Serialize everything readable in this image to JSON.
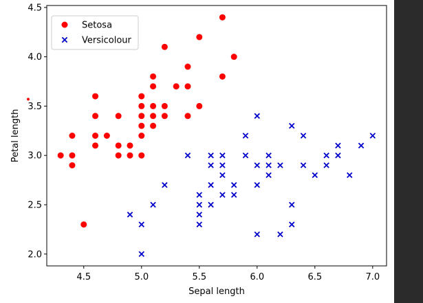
{
  "chart_data": {
    "type": "scatter",
    "title": "",
    "xlabel": "Sepal length",
    "ylabel": "Petal length",
    "xlim": [
      4.18,
      7.12
    ],
    "ylim": [
      1.88,
      4.52
    ],
    "xticks": [
      4.5,
      5.0,
      5.5,
      6.0,
      6.5,
      7.0
    ],
    "yticks": [
      2.0,
      2.5,
      3.0,
      3.5,
      4.0,
      4.5
    ],
    "xtick_labels": [
      "4.5",
      "5.0",
      "5.5",
      "6.0",
      "6.5",
      "7.0"
    ],
    "ytick_labels": [
      "2.0",
      "2.5",
      "3.0",
      "3.5",
      "4.0",
      "4.5"
    ],
    "grid": false,
    "legend_position": "top-left",
    "series": [
      {
        "name": "Setosa",
        "marker": "circle",
        "color": "#ff0000",
        "points": [
          [
            4.3,
            3.0
          ],
          [
            4.4,
            3.2
          ],
          [
            4.4,
            3.0
          ],
          [
            4.4,
            2.9
          ],
          [
            4.5,
            2.3
          ],
          [
            4.6,
            3.6
          ],
          [
            4.6,
            3.4
          ],
          [
            4.6,
            3.2
          ],
          [
            4.6,
            3.1
          ],
          [
            4.7,
            3.2
          ],
          [
            4.8,
            3.4
          ],
          [
            4.8,
            3.1
          ],
          [
            4.8,
            3.0
          ],
          [
            4.9,
            3.1
          ],
          [
            4.9,
            3.0
          ],
          [
            5.0,
            3.6
          ],
          [
            5.0,
            3.5
          ],
          [
            5.0,
            3.4
          ],
          [
            5.0,
            3.3
          ],
          [
            5.0,
            3.2
          ],
          [
            5.0,
            3.0
          ],
          [
            5.1,
            3.8
          ],
          [
            5.1,
            3.7
          ],
          [
            5.1,
            3.5
          ],
          [
            5.1,
            3.4
          ],
          [
            5.1,
            3.3
          ],
          [
            5.2,
            4.1
          ],
          [
            5.2,
            3.5
          ],
          [
            5.2,
            3.4
          ],
          [
            5.3,
            3.7
          ],
          [
            5.4,
            3.9
          ],
          [
            5.4,
            3.7
          ],
          [
            5.4,
            3.4
          ],
          [
            5.5,
            4.2
          ],
          [
            5.5,
            3.5
          ],
          [
            5.7,
            4.4
          ],
          [
            5.7,
            3.8
          ],
          [
            5.8,
            4.0
          ]
        ]
      },
      {
        "name": "Versicolour",
        "marker": "x",
        "color": "#0000cc",
        "points": [
          [
            4.9,
            2.4
          ],
          [
            5.0,
            2.3
          ],
          [
            5.0,
            2.0
          ],
          [
            5.1,
            2.5
          ],
          [
            5.2,
            2.7
          ],
          [
            5.4,
            3.0
          ],
          [
            5.5,
            2.6
          ],
          [
            5.5,
            2.5
          ],
          [
            5.5,
            2.4
          ],
          [
            5.5,
            2.3
          ],
          [
            5.6,
            3.0
          ],
          [
            5.6,
            2.9
          ],
          [
            5.6,
            2.7
          ],
          [
            5.6,
            2.5
          ],
          [
            5.7,
            3.0
          ],
          [
            5.7,
            2.9
          ],
          [
            5.7,
            2.8
          ],
          [
            5.7,
            2.6
          ],
          [
            5.8,
            2.7
          ],
          [
            5.8,
            2.6
          ],
          [
            5.9,
            3.2
          ],
          [
            5.9,
            3.0
          ],
          [
            6.0,
            3.4
          ],
          [
            6.0,
            2.9
          ],
          [
            6.0,
            2.7
          ],
          [
            6.0,
            2.2
          ],
          [
            6.1,
            3.0
          ],
          [
            6.1,
            2.9
          ],
          [
            6.1,
            2.8
          ],
          [
            6.2,
            2.9
          ],
          [
            6.2,
            2.2
          ],
          [
            6.3,
            3.3
          ],
          [
            6.3,
            2.5
          ],
          [
            6.3,
            2.3
          ],
          [
            6.4,
            3.2
          ],
          [
            6.4,
            2.9
          ],
          [
            6.5,
            2.8
          ],
          [
            6.6,
            3.0
          ],
          [
            6.6,
            2.9
          ],
          [
            6.7,
            3.1
          ],
          [
            6.7,
            3.0
          ],
          [
            6.8,
            2.8
          ],
          [
            6.9,
            3.1
          ],
          [
            7.0,
            3.2
          ]
        ]
      }
    ],
    "annotations": [
      {
        "x": 4.18,
        "y": 3.57,
        "color": "#ff0000",
        "note": "stray red dot at axis edge"
      }
    ]
  }
}
